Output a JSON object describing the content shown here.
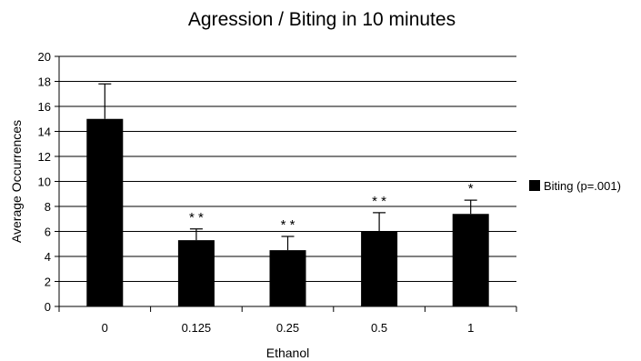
{
  "chart_data": {
    "type": "bar",
    "title": "Agression / Biting in 10 minutes",
    "xlabel": "Ethanol",
    "ylabel": "Average Occurrences",
    "categories": [
      "0",
      "0.125",
      "0.25",
      "0.5",
      "1"
    ],
    "series": [
      {
        "name": "Biting (p=.001)",
        "values": [
          15,
          5.3,
          4.5,
          6,
          7.4
        ],
        "error_upper": [
          2.8,
          0.9,
          1.1,
          1.5,
          1.1
        ],
        "color": "#000000"
      }
    ],
    "annotations": [
      "* *",
      "* *",
      "* *",
      "*"
    ],
    "annotation_categories": [
      "0.125",
      "0.25",
      "0.5",
      "1"
    ],
    "ylim": [
      0,
      20
    ],
    "yticks": [
      0,
      2,
      4,
      6,
      8,
      10,
      12,
      14,
      16,
      18,
      20
    ],
    "grid": true,
    "legend_position": "right"
  }
}
